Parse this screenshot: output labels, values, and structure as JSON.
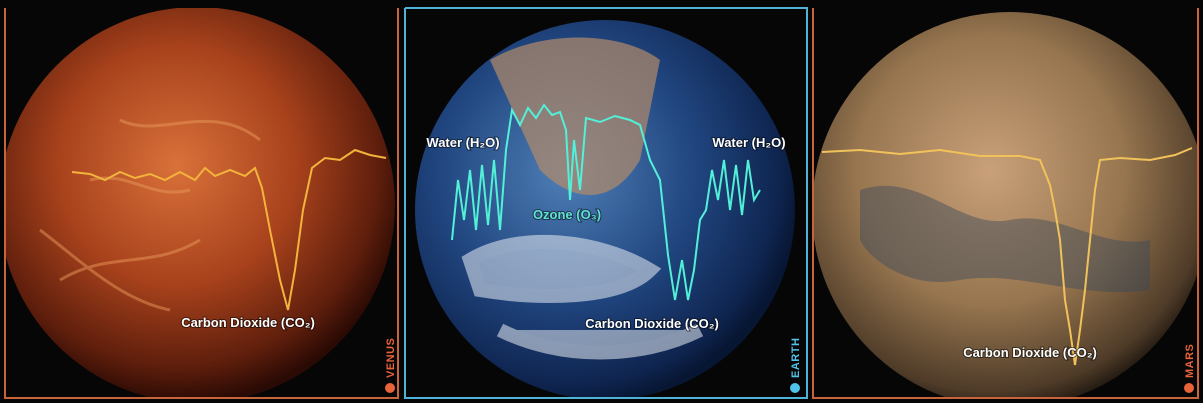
{
  "panels": [
    {
      "label": "VENUS",
      "annotations": [
        "Carbon Dioxide (CO₂)"
      ]
    },
    {
      "label": "EARTH",
      "annotations": [
        "Water (H₂O)",
        "Water (H₂O)",
        "Ozone (O₃)",
        "Carbon Dioxide (CO₂)"
      ]
    },
    {
      "label": "MARS",
      "annotations": [
        "Carbon Dioxide (CO₂)"
      ]
    }
  ]
}
